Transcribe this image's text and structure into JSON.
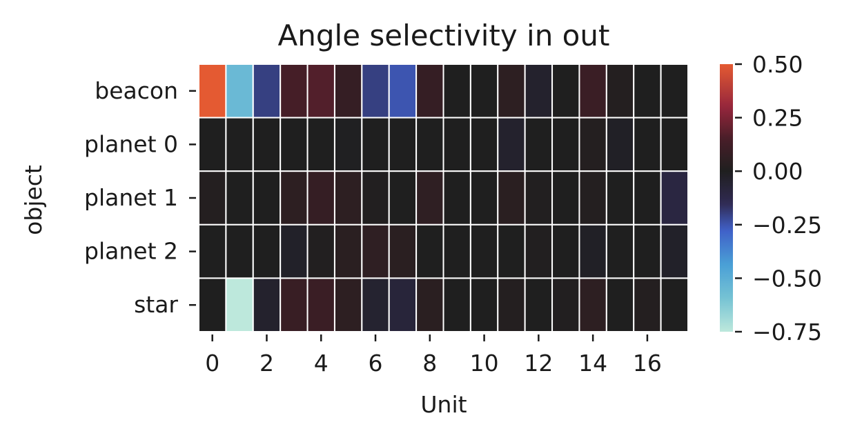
{
  "chart_data": {
    "type": "heatmap",
    "title": "Angle selectivity in out",
    "xlabel": "Unit",
    "ylabel": "object",
    "rows": [
      "beacon",
      "planet 0",
      "planet 1",
      "planet 2",
      "star"
    ],
    "columns": [
      0,
      1,
      2,
      3,
      4,
      5,
      6,
      7,
      8,
      9,
      10,
      11,
      12,
      13,
      14,
      15,
      16,
      17
    ],
    "x_tick_labels": [
      "0",
      "2",
      "4",
      "6",
      "8",
      "10",
      "12",
      "14",
      "16"
    ],
    "values": [
      [
        0.5,
        -0.55,
        -0.2,
        0.14,
        0.17,
        0.08,
        -0.2,
        -0.25,
        0.08,
        0.0,
        0.0,
        0.05,
        -0.04,
        0.0,
        0.1,
        0.02,
        0.0,
        0.0
      ],
      [
        0.0,
        0.0,
        0.0,
        0.0,
        0.0,
        -0.01,
        0.0,
        0.0,
        0.0,
        0.0,
        0.0,
        -0.04,
        0.0,
        0.0,
        0.02,
        -0.02,
        0.0,
        0.0
      ],
      [
        0.02,
        0.0,
        0.0,
        0.05,
        0.08,
        0.05,
        0.01,
        0.0,
        0.06,
        0.0,
        0.0,
        0.04,
        0.01,
        0.0,
        0.02,
        0.0,
        0.0,
        -0.1
      ],
      [
        0.0,
        0.0,
        0.0,
        -0.03,
        0.01,
        0.04,
        0.06,
        0.04,
        0.0,
        0.0,
        0.0,
        0.0,
        0.01,
        0.0,
        -0.02,
        0.0,
        0.0,
        -0.03
      ],
      [
        0.0,
        -0.75,
        -0.04,
        0.09,
        0.1,
        0.05,
        -0.05,
        -0.08,
        0.04,
        0.0,
        0.0,
        0.02,
        0.0,
        0.01,
        0.05,
        0.0,
        0.02,
        0.0
      ]
    ],
    "colorbar": {
      "cmap": "icefire",
      "vmin": -0.75,
      "vmax": 0.5,
      "center": 0.0,
      "tick_values": [
        0.5,
        0.25,
        0.0,
        -0.25,
        -0.5,
        -0.75
      ],
      "tick_labels": [
        "0.50",
        "0.25",
        "0.00",
        "−0.25",
        "−0.50",
        "−0.75"
      ]
    },
    "cell_edge_color": "#ffffff",
    "grid": false
  }
}
